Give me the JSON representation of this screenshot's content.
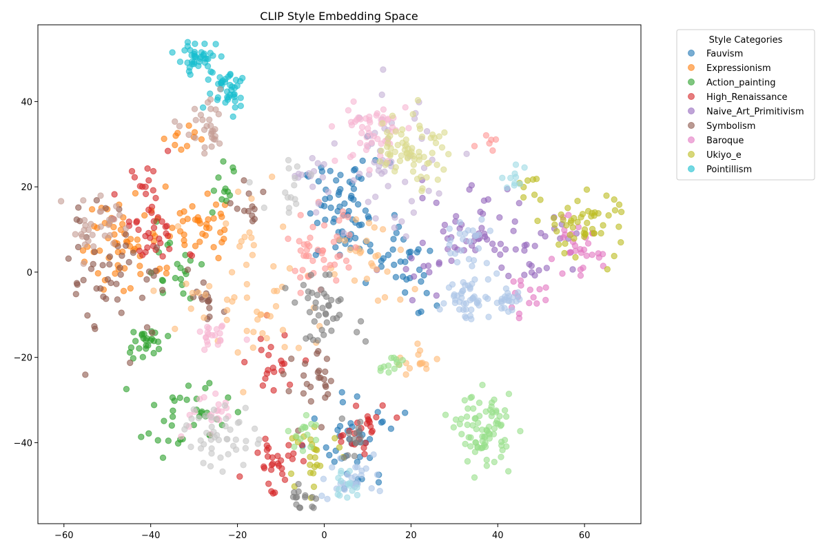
{
  "chart_data": {
    "type": "scatter",
    "title": "CLIP Style Embedding Space",
    "xlabel": "",
    "ylabel": "",
    "xlim": [
      -66,
      73
    ],
    "ylim": [
      -59,
      58
    ],
    "xticks": [
      -60,
      -40,
      -20,
      0,
      20,
      40,
      60
    ],
    "yticks": [
      40,
      20,
      0,
      -20,
      -40
    ],
    "grid": false,
    "legend": {
      "title": "Style Categories",
      "placement": "outside-upper-right"
    },
    "series": [
      {
        "name": "Fauvism",
        "color": "#1f77b4",
        "clusters": [
          {
            "cx": 5,
            "cy": 14,
            "sx": 5,
            "sy": 6,
            "n": 70
          },
          {
            "cx": 18,
            "cy": 0,
            "sx": 4,
            "sy": 5,
            "n": 30
          },
          {
            "cx": 8,
            "cy": -40,
            "sx": 4,
            "sy": 6,
            "n": 40
          }
        ]
      },
      {
        "name": "Expressionism",
        "color": "#ff7f0e",
        "clusters": [
          {
            "cx": -45,
            "cy": 8,
            "sx": 6,
            "sy": 6,
            "n": 60
          },
          {
            "cx": -29,
            "cy": 11,
            "sx": 3,
            "sy": 4,
            "n": 35
          },
          {
            "cx": -33,
            "cy": 32,
            "sx": 2,
            "sy": 2,
            "n": 10
          }
        ]
      },
      {
        "name": "Action_painting",
        "color": "#2ca02c",
        "clusters": [
          {
            "cx": -41,
            "cy": -17,
            "sx": 2.5,
            "sy": 2,
            "n": 25
          },
          {
            "cx": -32,
            "cy": -34,
            "sx": 5,
            "sy": 4,
            "n": 35
          },
          {
            "cx": -23,
            "cy": 20,
            "sx": 2,
            "sy": 3,
            "n": 12
          },
          {
            "cx": -35,
            "cy": 1,
            "sx": 3,
            "sy": 4,
            "n": 20
          }
        ]
      },
      {
        "name": "High_Renaissance",
        "color": "#d62728",
        "clusters": [
          {
            "cx": -40,
            "cy": 12,
            "sx": 3.5,
            "sy": 7,
            "n": 45
          },
          {
            "cx": -12,
            "cy": -44,
            "sx": 3,
            "sy": 3,
            "n": 30
          },
          {
            "cx": 8,
            "cy": -38,
            "sx": 3,
            "sy": 4,
            "n": 25
          },
          {
            "cx": -12,
            "cy": -22,
            "sx": 3,
            "sy": 4,
            "n": 20
          }
        ]
      },
      {
        "name": "Naive_Art_Primitivism",
        "color": "#9467bd",
        "clusters": [
          {
            "cx": 30,
            "cy": 8,
            "sx": 8,
            "sy": 6,
            "n": 50
          },
          {
            "cx": 48,
            "cy": 6,
            "sx": 6,
            "sy": 5,
            "n": 30
          }
        ]
      },
      {
        "name": "Symbolism",
        "color": "#8c564b",
        "clusters": [
          {
            "cx": -48,
            "cy": 0,
            "sx": 6,
            "sy": 8,
            "n": 50
          },
          {
            "cx": -17,
            "cy": 15,
            "sx": 2,
            "sy": 3,
            "n": 12
          },
          {
            "cx": -3,
            "cy": -27,
            "sx": 3,
            "sy": 4,
            "n": 25
          },
          {
            "cx": -27,
            "cy": -8,
            "sx": 3,
            "sy": 3,
            "n": 15
          }
        ]
      },
      {
        "name": "Baroque",
        "color": "#e377c2",
        "clusters": [
          {
            "cx": 58,
            "cy": 5,
            "sx": 3,
            "sy": 3,
            "n": 30
          },
          {
            "cx": 46,
            "cy": -6,
            "sx": 2.5,
            "sy": 2,
            "n": 15
          }
        ]
      },
      {
        "name": "Ukiyo_e",
        "color": "#bcbd22",
        "clusters": [
          {
            "cx": 60,
            "cy": 11,
            "sx": 5,
            "sy": 4,
            "n": 50
          },
          {
            "cx": -2,
            "cy": -43,
            "sx": 3,
            "sy": 3,
            "n": 25
          },
          {
            "cx": 47,
            "cy": 20,
            "sx": 1.5,
            "sy": 1.5,
            "n": 8
          }
        ]
      },
      {
        "name": "Pointillism",
        "color": "#17becf",
        "clusters": [
          {
            "cx": -29,
            "cy": 50,
            "sx": 2.5,
            "sy": 2,
            "n": 40
          },
          {
            "cx": -22,
            "cy": 43,
            "sx": 2.5,
            "sy": 2.5,
            "n": 40
          }
        ]
      },
      {
        "name": "",
        "color": "#aec7e8",
        "clusters": [
          {
            "cx": 33,
            "cy": -6,
            "sx": 2.5,
            "sy": 2.5,
            "n": 40
          },
          {
            "cx": 42,
            "cy": -6,
            "sx": 2,
            "sy": 2,
            "n": 25
          },
          {
            "cx": 33,
            "cy": 7,
            "sx": 2.5,
            "sy": 3,
            "n": 25
          },
          {
            "cx": 6,
            "cy": -48,
            "sx": 4,
            "sy": 3,
            "n": 30
          }
        ]
      },
      {
        "name": "",
        "color": "#ffbb78",
        "clusters": [
          {
            "cx": -15,
            "cy": -5,
            "sx": 9,
            "sy": 10,
            "n": 60
          },
          {
            "cx": 10,
            "cy": 2,
            "sx": 5,
            "sy": 6,
            "n": 25
          },
          {
            "cx": 22,
            "cy": -21,
            "sx": 3,
            "sy": 2,
            "n": 15
          }
        ]
      },
      {
        "name": "",
        "color": "#98df8a",
        "clusters": [
          {
            "cx": 37,
            "cy": -37,
            "sx": 3,
            "sy": 4,
            "n": 80
          },
          {
            "cx": 16,
            "cy": -22,
            "sx": 2,
            "sy": 1.5,
            "n": 12
          },
          {
            "cx": -5,
            "cy": -37,
            "sx": 2,
            "sy": 2,
            "n": 15
          }
        ]
      },
      {
        "name": "",
        "color": "#ff9896",
        "clusters": [
          {
            "cx": -1,
            "cy": 4,
            "sx": 4,
            "sy": 5,
            "n": 45
          },
          {
            "cx": 38,
            "cy": 30,
            "sx": 1.5,
            "sy": 1,
            "n": 6
          }
        ]
      },
      {
        "name": "",
        "color": "#c5b0d5",
        "clusters": [
          {
            "cx": 15,
            "cy": 25,
            "sx": 5,
            "sy": 8,
            "n": 50
          },
          {
            "cx": -3,
            "cy": 22,
            "sx": 3,
            "sy": 4,
            "n": 15
          }
        ]
      },
      {
        "name": "",
        "color": "#c49c94",
        "clusters": [
          {
            "cx": -27,
            "cy": 33,
            "sx": 2.5,
            "sy": 3,
            "n": 30
          },
          {
            "cx": -52,
            "cy": 10,
            "sx": 4,
            "sy": 4,
            "n": 30
          }
        ]
      },
      {
        "name": "",
        "color": "#f7b6d2",
        "clusters": [
          {
            "cx": 11,
            "cy": 33,
            "sx": 4,
            "sy": 4,
            "n": 50
          },
          {
            "cx": -25,
            "cy": -16,
            "sx": 2,
            "sy": 2,
            "n": 20
          },
          {
            "cx": -28,
            "cy": -33,
            "sx": 3,
            "sy": 3,
            "n": 20
          }
        ]
      },
      {
        "name": "",
        "color": "#7f7f7f",
        "clusters": [
          {
            "cx": 0,
            "cy": -9,
            "sx": 4,
            "sy": 3.5,
            "n": 40
          },
          {
            "cx": -5,
            "cy": -53,
            "sx": 2,
            "sy": 1.5,
            "n": 15
          },
          {
            "cx": 8,
            "cy": -39,
            "sx": 3,
            "sy": 3,
            "n": 15
          }
        ]
      },
      {
        "name": "",
        "color": "#c7c7c7",
        "clusters": [
          {
            "cx": -24,
            "cy": -38,
            "sx": 4,
            "sy": 4,
            "n": 45
          },
          {
            "cx": -8,
            "cy": 20,
            "sx": 3,
            "sy": 4,
            "n": 15
          }
        ]
      },
      {
        "name": "",
        "color": "#dbdb8d",
        "clusters": [
          {
            "cx": 20,
            "cy": 30,
            "sx": 4,
            "sy": 4,
            "n": 55
          },
          {
            "cx": 22,
            "cy": 25,
            "sx": 3,
            "sy": 3,
            "n": 15
          }
        ]
      },
      {
        "name": "",
        "color": "#9edae5",
        "clusters": [
          {
            "cx": 5,
            "cy": -50,
            "sx": 2,
            "sy": 2,
            "n": 15
          },
          {
            "cx": 44,
            "cy": 22,
            "sx": 1.5,
            "sy": 1.5,
            "n": 10
          }
        ]
      }
    ]
  }
}
